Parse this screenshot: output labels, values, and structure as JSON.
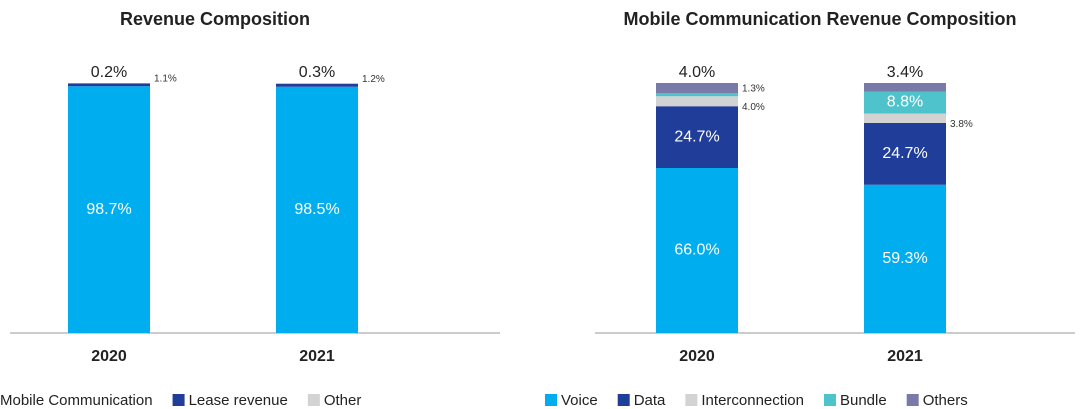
{
  "chart_data": [
    {
      "type": "stacked_bar",
      "title": "Revenue Composition",
      "categories": [
        "2020",
        "2021"
      ],
      "ylim": [
        0,
        100
      ],
      "series": [
        {
          "name": "Mobile Communication",
          "color": "#00aeef",
          "values": [
            98.7,
            98.5
          ],
          "value_labels": [
            "98.7%",
            "98.5%"
          ]
        },
        {
          "name": "Lease revenue",
          "color": "#1f3d99",
          "values": [
            1.1,
            1.2
          ],
          "value_labels": [
            "1.1%",
            "1.2%"
          ]
        },
        {
          "name": "Other",
          "color": "#d3d3d3",
          "values": [
            0.2,
            0.3
          ],
          "value_labels": [
            "0.2%",
            "0.3%"
          ]
        }
      ]
    },
    {
      "type": "stacked_bar",
      "title": "Mobile Communication Revenue Composition",
      "categories": [
        "2020",
        "2021"
      ],
      "ylim": [
        0,
        100
      ],
      "series": [
        {
          "name": "Voice",
          "color": "#00aeef",
          "values": [
            66.0,
            59.3
          ],
          "value_labels": [
            "66.0%",
            "59.3%"
          ]
        },
        {
          "name": "Data",
          "color": "#1f3d99",
          "values": [
            24.7,
            24.7
          ],
          "value_labels": [
            "24.7%",
            "24.7%"
          ]
        },
        {
          "name": "Interconnection",
          "color": "#d3d3d3",
          "values": [
            4.0,
            3.8
          ],
          "value_labels": [
            "4.0%",
            "3.8%"
          ]
        },
        {
          "name": "Bundle",
          "color": "#4fc3cb",
          "values": [
            1.3,
            8.8
          ],
          "value_labels": [
            "1.3%",
            "8.8%"
          ]
        },
        {
          "name": "Others",
          "color": "#7a7aa8",
          "values": [
            4.0,
            3.4
          ],
          "value_labels": [
            "4.0%",
            "3.4%"
          ]
        }
      ]
    }
  ]
}
